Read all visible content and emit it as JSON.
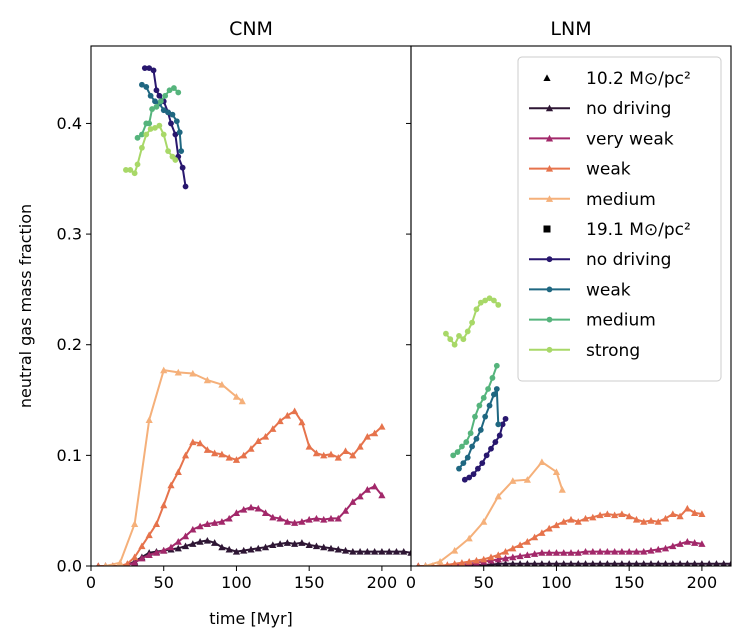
{
  "chart_data": {
    "type": "line",
    "ylabel": "neutral gas mass fraction",
    "xlabel": "time [Myr]",
    "xlim": [
      0,
      220
    ],
    "ylim": [
      0,
      0.47
    ],
    "xticks": [
      0,
      50,
      100,
      150,
      200
    ],
    "yticks": [
      0.0,
      0.1,
      0.2,
      0.3,
      0.4
    ],
    "xtick_labels": [
      "0",
      "50",
      "100",
      "150",
      "200"
    ],
    "ytick_labels": [
      "0.0",
      "0.1",
      "0.2",
      "0.3",
      "0.4"
    ],
    "legend": {
      "placement": "top-right",
      "entries": [
        {
          "kind": "header",
          "marker": "triangle",
          "label": "10.2 M⊙/pc²"
        },
        {
          "kind": "series",
          "ref": "tri_nodriving",
          "label": "no driving"
        },
        {
          "kind": "series",
          "ref": "tri_veryweak",
          "label": "very weak"
        },
        {
          "kind": "series",
          "ref": "tri_weak",
          "label": "weak"
        },
        {
          "kind": "series",
          "ref": "tri_medium",
          "label": "medium"
        },
        {
          "kind": "header",
          "marker": "square",
          "label": "19.1 M⊙/pc²"
        },
        {
          "kind": "series",
          "ref": "dot_nodriving",
          "label": "no driving"
        },
        {
          "kind": "series",
          "ref": "dot_weak",
          "label": "weak"
        },
        {
          "kind": "series",
          "ref": "dot_medium",
          "label": "medium"
        },
        {
          "kind": "series",
          "ref": "dot_strong",
          "label": "strong"
        }
      ]
    },
    "panels": [
      {
        "title": "CNM",
        "series": [
          {
            "id": "tri_nodriving",
            "name": "no driving",
            "marker": "triangle",
            "color": "#2e1634",
            "x": [
              5,
              10,
              15,
              20,
              25,
              30,
              35,
              40,
              45,
              50,
              55,
              60,
              65,
              70,
              75,
              80,
              85,
              90,
              95,
              100,
              105,
              110,
              115,
              120,
              125,
              130,
              135,
              140,
              145,
              150,
              155,
              160,
              165,
              170,
              175,
              180,
              185,
              190,
              195,
              200,
              205,
              210,
              215,
              220
            ],
            "y": [
              0,
              0,
              0,
              0,
              0.001,
              0.004,
              0.008,
              0.012,
              0.013,
              0.014,
              0.015,
              0.016,
              0.018,
              0.02,
              0.022,
              0.023,
              0.021,
              0.017,
              0.015,
              0.013,
              0.014,
              0.015,
              0.016,
              0.017,
              0.019,
              0.02,
              0.021,
              0.02,
              0.021,
              0.019,
              0.018,
              0.017,
              0.016,
              0.015,
              0.014,
              0.013,
              0.013,
              0.013,
              0.013,
              0.013,
              0.013,
              0.013,
              0.013,
              0.012
            ]
          },
          {
            "id": "tri_veryweak",
            "name": "very weak",
            "marker": "triangle",
            "color": "#a2286a",
            "x": [
              5,
              10,
              15,
              20,
              25,
              30,
              35,
              40,
              45,
              50,
              55,
              60,
              65,
              70,
              75,
              80,
              85,
              90,
              95,
              100,
              105,
              110,
              115,
              120,
              125,
              130,
              135,
              140,
              145,
              150,
              155,
              160,
              165,
              170,
              175,
              180,
              185,
              190,
              195,
              200
            ],
            "y": [
              0,
              0,
              0,
              0,
              0.001,
              0.003,
              0.007,
              0.01,
              0.012,
              0.014,
              0.017,
              0.022,
              0.027,
              0.033,
              0.036,
              0.038,
              0.039,
              0.04,
              0.043,
              0.048,
              0.051,
              0.053,
              0.052,
              0.048,
              0.044,
              0.043,
              0.04,
              0.039,
              0.04,
              0.042,
              0.043,
              0.042,
              0.043,
              0.043,
              0.05,
              0.058,
              0.063,
              0.069,
              0.072,
              0.064
            ]
          },
          {
            "id": "tri_weak",
            "name": "weak",
            "marker": "triangle",
            "color": "#e6734c",
            "x": [
              5,
              10,
              15,
              20,
              25,
              30,
              35,
              40,
              45,
              50,
              55,
              60,
              65,
              70,
              75,
              80,
              85,
              90,
              95,
              100,
              105,
              110,
              115,
              120,
              125,
              130,
              135,
              140,
              145,
              150,
              155,
              160,
              165,
              170,
              175,
              180,
              185,
              190,
              195,
              200
            ],
            "y": [
              0,
              0,
              0,
              0,
              0.002,
              0.008,
              0.018,
              0.028,
              0.038,
              0.055,
              0.073,
              0.085,
              0.1,
              0.112,
              0.111,
              0.105,
              0.102,
              0.101,
              0.098,
              0.096,
              0.1,
              0.106,
              0.113,
              0.117,
              0.124,
              0.131,
              0.136,
              0.14,
              0.13,
              0.108,
              0.102,
              0.1,
              0.101,
              0.098,
              0.104,
              0.1,
              0.108,
              0.117,
              0.12,
              0.126
            ]
          },
          {
            "id": "tri_medium",
            "name": "medium",
            "marker": "triangle",
            "color": "#f5b07a",
            "x": [
              10,
              20,
              30,
              40,
              50,
              60,
              70,
              80,
              90,
              100,
              104
            ],
            "y": [
              0,
              0.003,
              0.038,
              0.132,
              0.177,
              0.175,
              0.174,
              0.168,
              0.164,
              0.153,
              0.149
            ]
          },
          {
            "id": "dot_nodriving",
            "name": "no driving",
            "marker": "circle",
            "color": "#28176e",
            "x": [
              37,
              40,
              43,
              45,
              47,
              50,
              53,
              55,
              58,
              60,
              63,
              65
            ],
            "y": [
              0.45,
              0.45,
              0.448,
              0.43,
              0.425,
              0.42,
              0.41,
              0.4,
              0.39,
              0.37,
              0.36,
              0.343
            ]
          },
          {
            "id": "dot_weak",
            "name": "weak",
            "marker": "circle",
            "color": "#1f6781",
            "x": [
              35,
              38,
              41,
              44,
              47,
              50,
              53,
              56,
              59,
              61,
              62
            ],
            "y": [
              0.435,
              0.433,
              0.425,
              0.42,
              0.418,
              0.412,
              0.41,
              0.408,
              0.402,
              0.392,
              0.375
            ]
          },
          {
            "id": "dot_medium",
            "name": "medium",
            "marker": "circle",
            "color": "#55b47c",
            "x": [
              32,
              35,
              38,
              40,
              42,
              45,
              48,
              51,
              54,
              57,
              60
            ],
            "y": [
              0.387,
              0.39,
              0.4,
              0.4,
              0.413,
              0.415,
              0.42,
              0.425,
              0.43,
              0.432,
              0.428
            ]
          },
          {
            "id": "dot_strong",
            "name": "strong",
            "marker": "circle",
            "color": "#a8d868",
            "x": [
              24,
              27,
              30,
              32,
              35,
              38,
              41,
              44,
              47,
              50,
              53,
              56,
              58
            ],
            "y": [
              0.358,
              0.358,
              0.355,
              0.363,
              0.378,
              0.39,
              0.395,
              0.396,
              0.398,
              0.39,
              0.375,
              0.37,
              0.367
            ]
          }
        ]
      },
      {
        "title": "LNM",
        "series": [
          {
            "id": "tri_nodriving",
            "name": "no driving",
            "marker": "triangle",
            "color": "#2e1634",
            "x": [
              5,
              10,
              15,
              20,
              25,
              30,
              35,
              40,
              45,
              50,
              55,
              60,
              65,
              70,
              75,
              80,
              85,
              90,
              95,
              100,
              105,
              110,
              115,
              120,
              125,
              130,
              135,
              140,
              145,
              150,
              155,
              160,
              165,
              170,
              175,
              180,
              185,
              190,
              195,
              200,
              205,
              210,
              215,
              220
            ],
            "y": [
              0,
              0,
              0,
              0,
              0,
              0,
              0.001,
              0.001,
              0.001,
              0.001,
              0.001,
              0.002,
              0.002,
              0.002,
              0.002,
              0.002,
              0.002,
              0.002,
              0.002,
              0.002,
              0.002,
              0.002,
              0.002,
              0.002,
              0.002,
              0.002,
              0.002,
              0.002,
              0.002,
              0.002,
              0.002,
              0.002,
              0.002,
              0.002,
              0.002,
              0.002,
              0.002,
              0.002,
              0.002,
              0.002,
              0.002,
              0.002,
              0.002,
              0.002
            ]
          },
          {
            "id": "tri_veryweak",
            "name": "very weak",
            "marker": "triangle",
            "color": "#a2286a",
            "x": [
              5,
              10,
              15,
              20,
              25,
              30,
              35,
              40,
              45,
              50,
              55,
              60,
              65,
              70,
              75,
              80,
              85,
              90,
              95,
              100,
              105,
              110,
              115,
              120,
              125,
              130,
              135,
              140,
              145,
              150,
              155,
              160,
              165,
              170,
              175,
              180,
              185,
              190,
              195,
              200
            ],
            "y": [
              0,
              0,
              0,
              0,
              0,
              0.001,
              0.001,
              0.002,
              0.003,
              0.004,
              0.005,
              0.006,
              0.007,
              0.008,
              0.009,
              0.01,
              0.011,
              0.012,
              0.012,
              0.012,
              0.012,
              0.012,
              0.012,
              0.013,
              0.013,
              0.013,
              0.013,
              0.013,
              0.013,
              0.013,
              0.013,
              0.013,
              0.014,
              0.015,
              0.016,
              0.018,
              0.02,
              0.022,
              0.021,
              0.02
            ]
          },
          {
            "id": "tri_weak",
            "name": "weak",
            "marker": "triangle",
            "color": "#e6734c",
            "x": [
              5,
              10,
              15,
              20,
              25,
              30,
              35,
              40,
              45,
              50,
              55,
              60,
              65,
              70,
              75,
              80,
              85,
              90,
              95,
              100,
              105,
              110,
              115,
              120,
              125,
              130,
              135,
              140,
              145,
              150,
              155,
              160,
              165,
              170,
              175,
              180,
              185,
              190,
              195,
              200
            ],
            "y": [
              0,
              0,
              0,
              0,
              0.001,
              0.002,
              0.003,
              0.004,
              0.005,
              0.006,
              0.008,
              0.01,
              0.013,
              0.016,
              0.019,
              0.022,
              0.026,
              0.03,
              0.034,
              0.037,
              0.04,
              0.042,
              0.04,
              0.043,
              0.044,
              0.046,
              0.047,
              0.046,
              0.047,
              0.045,
              0.042,
              0.04,
              0.041,
              0.04,
              0.043,
              0.047,
              0.045,
              0.052,
              0.048,
              0.047
            ]
          },
          {
            "id": "tri_medium",
            "name": "medium",
            "marker": "triangle",
            "color": "#f5b07a",
            "x": [
              10,
              20,
              30,
              40,
              50,
              60,
              70,
              80,
              90,
              100,
              104
            ],
            "y": [
              0,
              0.004,
              0.014,
              0.025,
              0.04,
              0.063,
              0.077,
              0.078,
              0.094,
              0.085,
              0.069
            ]
          },
          {
            "id": "dot_nodriving",
            "name": "no driving",
            "marker": "circle",
            "color": "#28176e",
            "x": [
              37,
              40,
              43,
              46,
              49,
              52,
              55,
              58,
              61,
              63,
              65
            ],
            "y": [
              0.078,
              0.08,
              0.083,
              0.088,
              0.093,
              0.1,
              0.106,
              0.112,
              0.118,
              0.128,
              0.133
            ]
          },
          {
            "id": "dot_weak",
            "name": "weak",
            "marker": "circle",
            "color": "#1f6781",
            "x": [
              33,
              36,
              39,
              42,
              45,
              48,
              51,
              54,
              57,
              59,
              60
            ],
            "y": [
              0.088,
              0.093,
              0.098,
              0.108,
              0.115,
              0.123,
              0.135,
              0.145,
              0.155,
              0.16,
              0.128
            ]
          },
          {
            "id": "dot_medium",
            "name": "medium",
            "marker": "circle",
            "color": "#55b47c",
            "x": [
              29,
              32,
              35,
              38,
              41,
              44,
              47,
              50,
              53,
              56,
              59
            ],
            "y": [
              0.1,
              0.103,
              0.108,
              0.112,
              0.12,
              0.135,
              0.145,
              0.152,
              0.16,
              0.17,
              0.181
            ]
          },
          {
            "id": "dot_strong",
            "name": "strong",
            "marker": "circle",
            "color": "#a8d868",
            "x": [
              24,
              27,
              30,
              33,
              36,
              39,
              42,
              45,
              48,
              51,
              54,
              57,
              60
            ],
            "y": [
              0.21,
              0.205,
              0.2,
              0.208,
              0.205,
              0.212,
              0.22,
              0.232,
              0.238,
              0.24,
              0.242,
              0.24,
              0.236
            ]
          }
        ]
      }
    ]
  }
}
